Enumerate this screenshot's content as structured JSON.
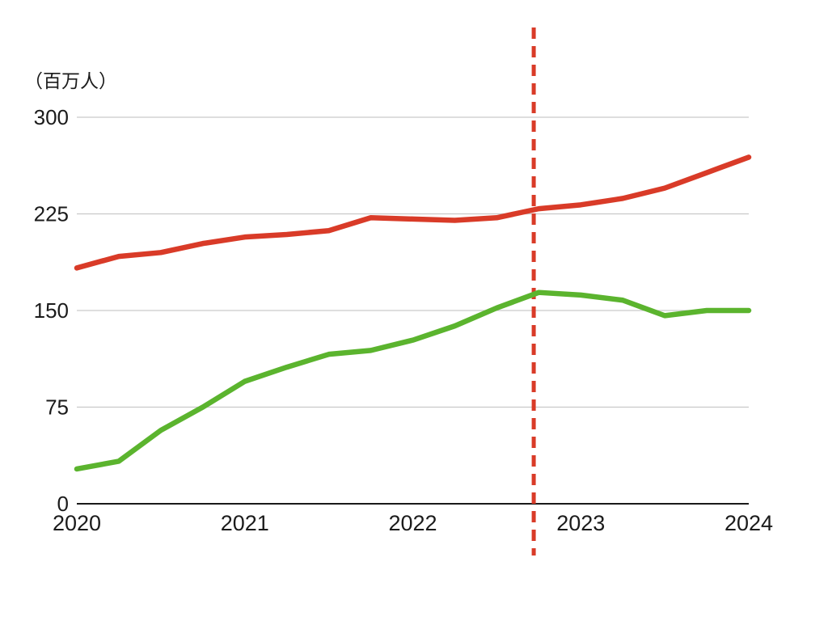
{
  "chart_data": {
    "type": "line",
    "title": "",
    "unit_label": "（百万人）",
    "x": [
      2020,
      2020.25,
      2020.5,
      2020.75,
      2021,
      2021.25,
      2021.5,
      2021.75,
      2022,
      2022.25,
      2022.5,
      2022.75,
      2023,
      2023.25,
      2023.5,
      2023.75,
      2024
    ],
    "series": [
      {
        "name": "red-series",
        "color": "#d93b28",
        "values": [
          183,
          192,
          195,
          202,
          207,
          209,
          212,
          222,
          221,
          220,
          222,
          229,
          232,
          237,
          245,
          257,
          269
        ]
      },
      {
        "name": "green-series",
        "color": "#5bb42e",
        "values": [
          27,
          33,
          57,
          75,
          95,
          106,
          116,
          119,
          127,
          138,
          152,
          164,
          162,
          158,
          146,
          150,
          150
        ]
      }
    ],
    "x_ticks": [
      2020,
      2021,
      2022,
      2023,
      2024
    ],
    "y_ticks": [
      0,
      75,
      150,
      225,
      300
    ],
    "xlim": [
      2020,
      2024
    ],
    "ylim": [
      0,
      300
    ],
    "grid": true,
    "legend": "none",
    "annotations": [
      {
        "type": "vline",
        "x": 2022.72,
        "style": "dashed",
        "color": "#d93b28"
      }
    ],
    "colors": {
      "gridline": "#c9c9c9",
      "axis": "#1a1a1a",
      "text": "#1b1b1b"
    }
  }
}
